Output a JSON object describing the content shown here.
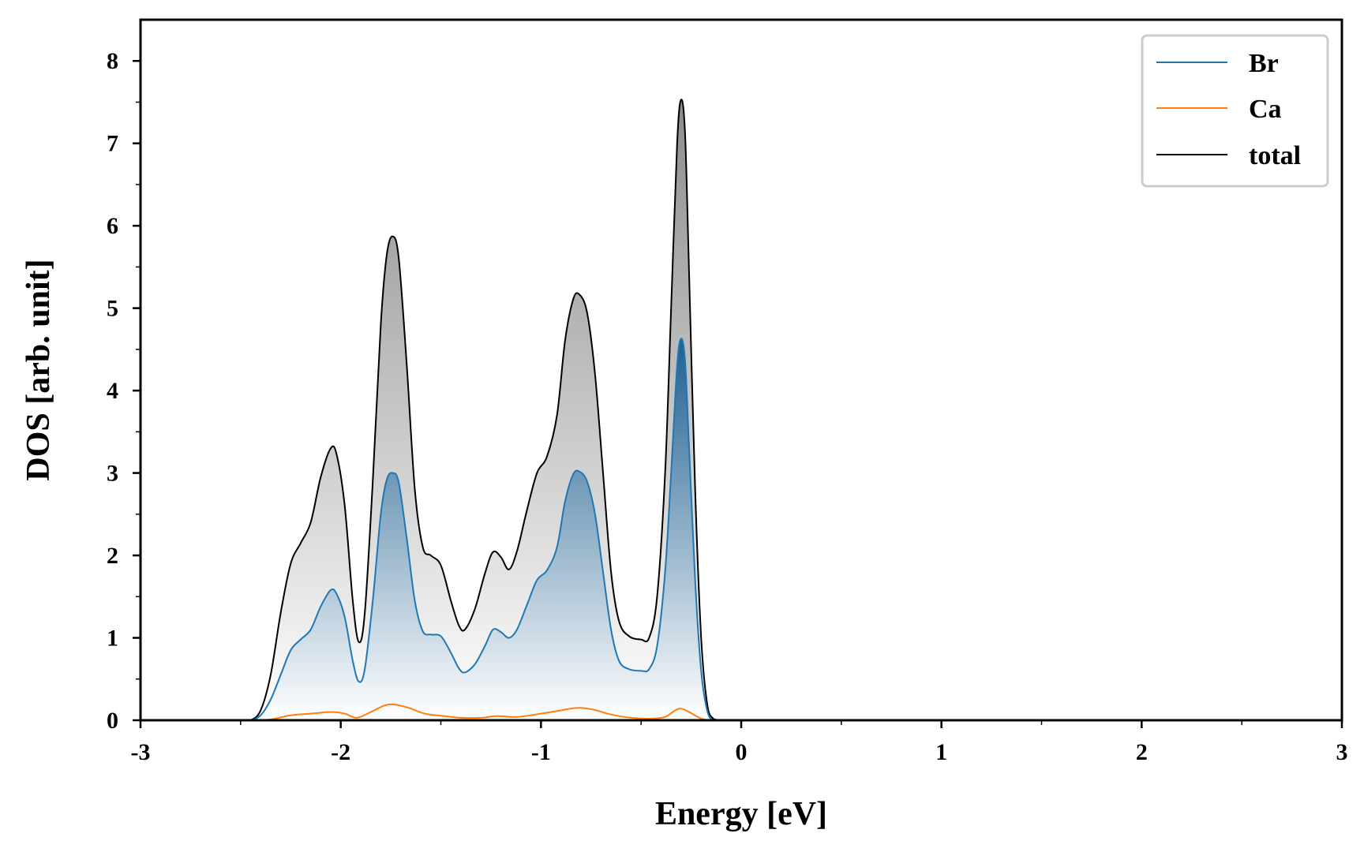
{
  "chart_data": {
    "type": "line",
    "title": "",
    "xlabel": "Energy [eV]",
    "ylabel": "DOS [arb. unit]",
    "xlim": [
      -3,
      3
    ],
    "ylim": [
      0,
      8.5
    ],
    "xticks": [
      -3,
      -2,
      -1,
      0,
      1,
      2,
      3
    ],
    "xtick_labels": [
      "-3",
      "-2",
      "-1",
      "0",
      "1",
      "2",
      "3"
    ],
    "yticks": [
      0,
      1,
      2,
      3,
      4,
      5,
      6,
      7,
      8
    ],
    "ytick_labels": [
      "0",
      "1",
      "2",
      "3",
      "4",
      "5",
      "6",
      "7",
      "8"
    ],
    "grid": false,
    "legend_position": "top-right",
    "series": [
      {
        "name": "Br",
        "color": "#1f77b4",
        "fill": "gradient",
        "points": [
          [
            -2.5,
            0
          ],
          [
            -2.45,
            0.0
          ],
          [
            -2.4,
            0.06
          ],
          [
            -2.35,
            0.25
          ],
          [
            -2.3,
            0.55
          ],
          [
            -2.25,
            0.85
          ],
          [
            -2.2,
            0.98
          ],
          [
            -2.15,
            1.1
          ],
          [
            -2.1,
            1.38
          ],
          [
            -2.05,
            1.58
          ],
          [
            -2.02,
            1.53
          ],
          [
            -1.98,
            1.25
          ],
          [
            -1.94,
            0.72
          ],
          [
            -1.91,
            0.47
          ],
          [
            -1.88,
            0.62
          ],
          [
            -1.84,
            1.45
          ],
          [
            -1.8,
            2.5
          ],
          [
            -1.77,
            2.92
          ],
          [
            -1.74,
            3.0
          ],
          [
            -1.71,
            2.88
          ],
          [
            -1.67,
            2.2
          ],
          [
            -1.63,
            1.45
          ],
          [
            -1.59,
            1.08
          ],
          [
            -1.55,
            1.04
          ],
          [
            -1.5,
            1.02
          ],
          [
            -1.45,
            0.82
          ],
          [
            -1.41,
            0.63
          ],
          [
            -1.38,
            0.58
          ],
          [
            -1.33,
            0.68
          ],
          [
            -1.28,
            0.9
          ],
          [
            -1.24,
            1.1
          ],
          [
            -1.2,
            1.07
          ],
          [
            -1.16,
            1.0
          ],
          [
            -1.12,
            1.1
          ],
          [
            -1.07,
            1.4
          ],
          [
            -1.02,
            1.7
          ],
          [
            -0.97,
            1.82
          ],
          [
            -0.92,
            2.1
          ],
          [
            -0.88,
            2.65
          ],
          [
            -0.84,
            2.98
          ],
          [
            -0.81,
            3.02
          ],
          [
            -0.77,
            2.9
          ],
          [
            -0.73,
            2.5
          ],
          [
            -0.69,
            1.8
          ],
          [
            -0.65,
            1.1
          ],
          [
            -0.61,
            0.72
          ],
          [
            -0.56,
            0.62
          ],
          [
            -0.5,
            0.6
          ],
          [
            -0.46,
            0.62
          ],
          [
            -0.42,
            0.9
          ],
          [
            -0.38,
            1.8
          ],
          [
            -0.35,
            3.0
          ],
          [
            -0.32,
            4.3
          ],
          [
            -0.3,
            4.63
          ],
          [
            -0.28,
            4.35
          ],
          [
            -0.26,
            3.3
          ],
          [
            -0.23,
            1.7
          ],
          [
            -0.2,
            0.6
          ],
          [
            -0.17,
            0.12
          ],
          [
            -0.14,
            0.0
          ],
          [
            -0.1,
            0
          ]
        ]
      },
      {
        "name": "Ca",
        "color": "#ff7f0e",
        "fill": "none",
        "points": [
          [
            -2.45,
            0
          ],
          [
            -2.35,
            0.01
          ],
          [
            -2.25,
            0.06
          ],
          [
            -2.15,
            0.08
          ],
          [
            -2.05,
            0.1
          ],
          [
            -1.98,
            0.08
          ],
          [
            -1.92,
            0.03
          ],
          [
            -1.85,
            0.1
          ],
          [
            -1.78,
            0.18
          ],
          [
            -1.73,
            0.19
          ],
          [
            -1.66,
            0.15
          ],
          [
            -1.58,
            0.08
          ],
          [
            -1.48,
            0.05
          ],
          [
            -1.4,
            0.03
          ],
          [
            -1.3,
            0.03
          ],
          [
            -1.22,
            0.05
          ],
          [
            -1.12,
            0.04
          ],
          [
            -1.0,
            0.08
          ],
          [
            -0.9,
            0.12
          ],
          [
            -0.82,
            0.15
          ],
          [
            -0.74,
            0.13
          ],
          [
            -0.65,
            0.07
          ],
          [
            -0.55,
            0.03
          ],
          [
            -0.45,
            0.02
          ],
          [
            -0.38,
            0.04
          ],
          [
            -0.33,
            0.12
          ],
          [
            -0.3,
            0.14
          ],
          [
            -0.26,
            0.1
          ],
          [
            -0.2,
            0.02
          ],
          [
            -0.15,
            0
          ]
        ]
      },
      {
        "name": "total",
        "color": "#000000",
        "fill": "gradient-gray",
        "points": [
          [
            -2.5,
            0
          ],
          [
            -2.45,
            0.0
          ],
          [
            -2.4,
            0.12
          ],
          [
            -2.35,
            0.55
          ],
          [
            -2.3,
            1.3
          ],
          [
            -2.25,
            1.9
          ],
          [
            -2.2,
            2.15
          ],
          [
            -2.15,
            2.4
          ],
          [
            -2.1,
            2.95
          ],
          [
            -2.05,
            3.3
          ],
          [
            -2.02,
            3.22
          ],
          [
            -1.98,
            2.6
          ],
          [
            -1.94,
            1.45
          ],
          [
            -1.91,
            0.95
          ],
          [
            -1.88,
            1.3
          ],
          [
            -1.84,
            2.9
          ],
          [
            -1.8,
            4.8
          ],
          [
            -1.77,
            5.65
          ],
          [
            -1.74,
            5.87
          ],
          [
            -1.71,
            5.6
          ],
          [
            -1.67,
            4.3
          ],
          [
            -1.63,
            2.8
          ],
          [
            -1.59,
            2.1
          ],
          [
            -1.55,
            2.0
          ],
          [
            -1.5,
            1.88
          ],
          [
            -1.45,
            1.45
          ],
          [
            -1.41,
            1.15
          ],
          [
            -1.38,
            1.1
          ],
          [
            -1.33,
            1.35
          ],
          [
            -1.28,
            1.78
          ],
          [
            -1.24,
            2.04
          ],
          [
            -1.2,
            1.98
          ],
          [
            -1.16,
            1.83
          ],
          [
            -1.12,
            2.05
          ],
          [
            -1.07,
            2.55
          ],
          [
            -1.02,
            3.0
          ],
          [
            -0.97,
            3.2
          ],
          [
            -0.92,
            3.7
          ],
          [
            -0.88,
            4.6
          ],
          [
            -0.84,
            5.1
          ],
          [
            -0.81,
            5.17
          ],
          [
            -0.77,
            4.95
          ],
          [
            -0.73,
            4.2
          ],
          [
            -0.69,
            3.0
          ],
          [
            -0.65,
            1.8
          ],
          [
            -0.61,
            1.2
          ],
          [
            -0.56,
            1.02
          ],
          [
            -0.5,
            0.98
          ],
          [
            -0.46,
            1.0
          ],
          [
            -0.42,
            1.5
          ],
          [
            -0.38,
            3.0
          ],
          [
            -0.35,
            5.0
          ],
          [
            -0.32,
            7.0
          ],
          [
            -0.3,
            7.53
          ],
          [
            -0.28,
            7.1
          ],
          [
            -0.26,
            5.4
          ],
          [
            -0.23,
            2.8
          ],
          [
            -0.2,
            1.0
          ],
          [
            -0.17,
            0.2
          ],
          [
            -0.14,
            0.02
          ],
          [
            -0.1,
            0
          ]
        ]
      }
    ]
  }
}
